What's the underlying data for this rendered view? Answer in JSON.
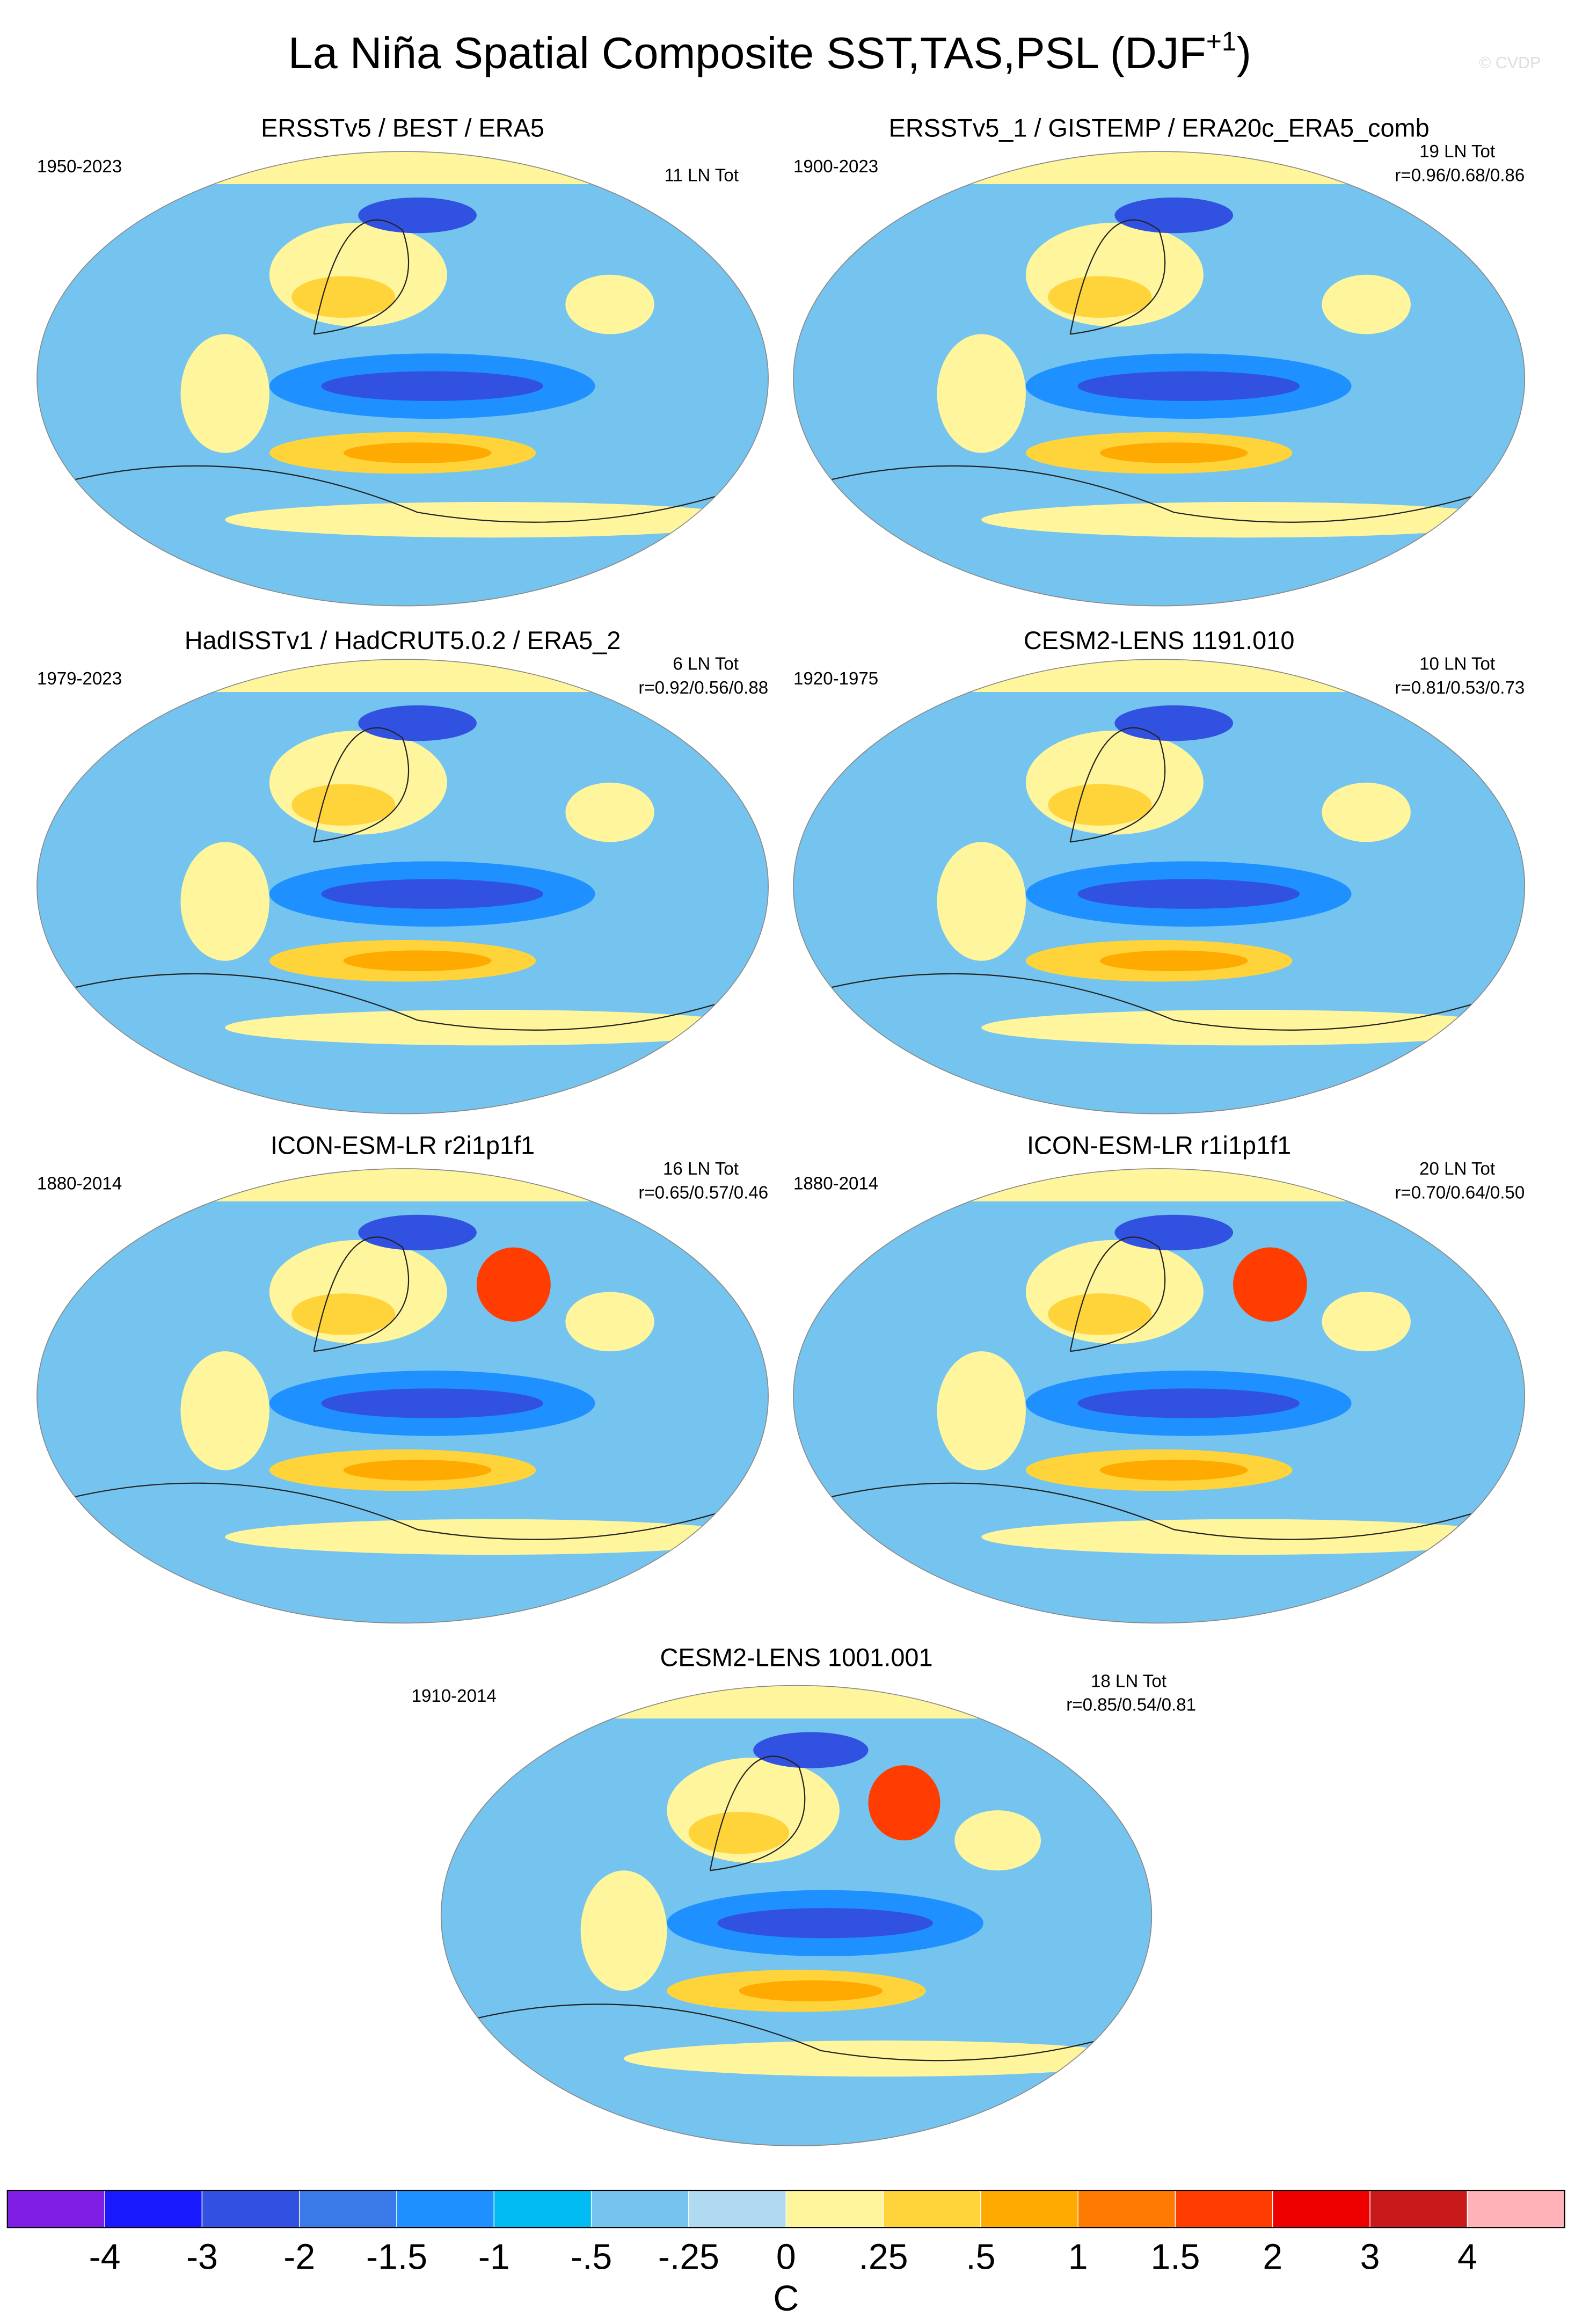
{
  "header": {
    "title": "La Niña Spatial Composite SST,TAS,PSL (DJF",
    "title_superscript": "+1",
    "title_end": ")",
    "watermark": "© CVDP"
  },
  "panels": [
    {
      "title": "ERSSTv5 / BEST / ERA5",
      "period": "1950-2023",
      "count": "11 LN Tot"
    },
    {
      "title": "ERSSTv5_1 / GISTEMP / ERA20c_ERA5_comb",
      "period": "1900-2023",
      "count": "19 LN Tot",
      "correlation": "r=0.96/0.68/0.86"
    },
    {
      "title": "HadISSTv1 / HadCRUT5.0.2 / ERA5_2",
      "period": "1979-2023",
      "count": "6 LN Tot",
      "correlation": "r=0.92/0.56/0.88"
    },
    {
      "title": "CESM2-LENS 1191.010",
      "period": "1920-1975",
      "count": "10 LN Tot",
      "correlation": "r=0.81/0.53/0.73"
    },
    {
      "title": "ICON-ESM-LR r2i1p1f1",
      "period": "1880-2014",
      "count": "16 LN Tot",
      "correlation": "r=0.65/0.57/0.46"
    },
    {
      "title": "ICON-ESM-LR r1i1p1f1",
      "period": "1880-2014",
      "count": "20 LN Tot",
      "correlation": "r=0.70/0.64/0.50"
    },
    {
      "title": "CESM2-LENS 1001.001",
      "period": "1910-2014",
      "count": "18 LN Tot",
      "correlation": "r=0.85/0.54/0.81"
    }
  ],
  "colorbar": {
    "colors": [
      "#7f1fe6",
      "#1a1aff",
      "#3152e0",
      "#3a7ae8",
      "#1e90ff",
      "#00bcf2",
      "#74c4ef",
      "#b0daf2",
      "#fff59d",
      "#ffd43b",
      "#ffaa00",
      "#ff7a00",
      "#ff3d00",
      "#ee0000",
      "#c81a1a",
      "#ffb3b8"
    ],
    "labels": [
      "-4",
      "-3",
      "-2",
      "-1.5",
      "-1",
      "-.5",
      "-.25",
      "0",
      ".25",
      ".5",
      "1",
      "1.5",
      "2",
      "3",
      "4"
    ],
    "unit": "C"
  }
}
